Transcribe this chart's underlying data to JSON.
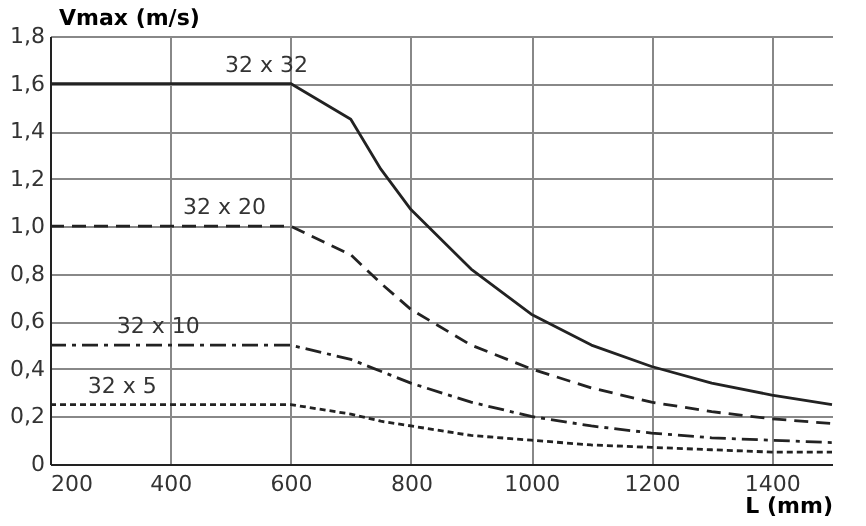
{
  "chart_data": {
    "type": "line",
    "xlabel": "L (mm)",
    "ylabel": "Vmax (m/s)",
    "xlim": [
      200,
      1500
    ],
    "xticks": [
      200,
      400,
      600,
      800,
      1000,
      1200,
      1400
    ],
    "ylim": [
      0,
      1.8
    ],
    "yticks": [
      0,
      {
        "value": 0.2,
        "label": "0,2"
      },
      {
        "value": 0.4,
        "label": "0,4"
      },
      {
        "value": 0.6,
        "label": "0,6"
      },
      {
        "value": 0.8,
        "label": "0,8"
      },
      {
        "value": 1.0,
        "label": "1,0"
      },
      {
        "value": 1.2,
        "label": "1,2"
      },
      {
        "value": 1.4,
        "label": "1,4"
      },
      {
        "value": 1.6,
        "label": "1,6"
      },
      {
        "value": 1.8,
        "label": "1,8"
      }
    ],
    "grid": true,
    "marker": "none",
    "x": [
      200,
      600,
      700,
      750,
      800,
      900,
      1000,
      1100,
      1200,
      1300,
      1400,
      1500
    ],
    "series": [
      {
        "color": "#222222",
        "line_style": "solid",
        "values": [
          1.6,
          1.6,
          1.45,
          1.24,
          1.07,
          0.82,
          0.63,
          0.5,
          0.41,
          0.34,
          0.29,
          0.25
        ]
      },
      {
        "color": "#222222",
        "line_style": "dashed",
        "values": [
          1.0,
          1.0,
          0.88,
          0.76,
          0.65,
          0.5,
          0.4,
          0.32,
          0.26,
          0.22,
          0.19,
          0.17
        ]
      },
      {
        "color": "#222222",
        "line_style": "dashdot",
        "values": [
          0.5,
          0.5,
          0.44,
          0.39,
          0.34,
          0.26,
          0.2,
          0.16,
          0.13,
          0.11,
          0.1,
          0.09
        ]
      },
      {
        "color": "#222222",
        "line_style": "dotted",
        "values": [
          0.25,
          0.25,
          0.21,
          0.18,
          0.16,
          0.12,
          0.1,
          0.08,
          0.07,
          0.06,
          0.05,
          0.05
        ]
      }
    ],
    "annotations": [
      {
        "text": "32 x 32",
        "x": 560,
        "y": 1.6
      },
      {
        "text": "32 x 20",
        "x": 490,
        "y": 1.0
      },
      {
        "text": "32 x 10",
        "x": 380,
        "y": 0.5
      },
      {
        "text": "32 x 5",
        "x": 320,
        "y": 0.25
      }
    ]
  }
}
